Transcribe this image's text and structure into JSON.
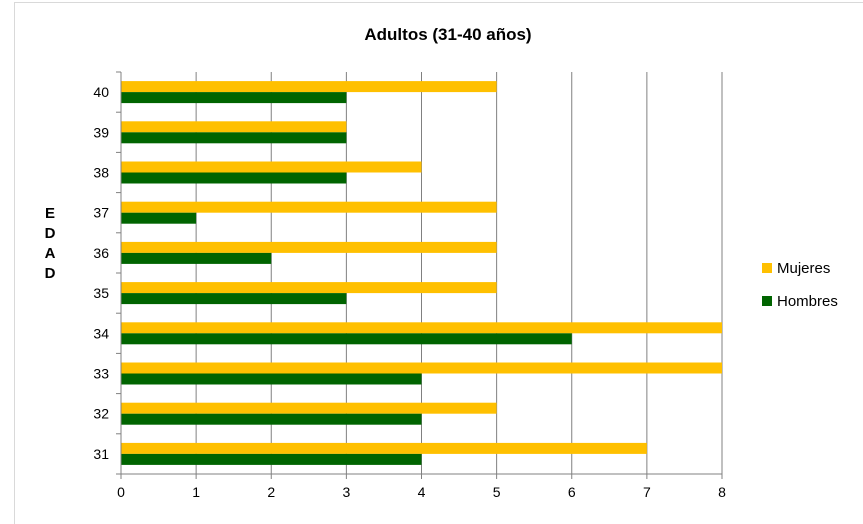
{
  "chart_data": {
    "type": "bar",
    "orientation": "horizontal",
    "title": "Adultos (31-40 años)",
    "ylabel": [
      "E",
      "D",
      "A",
      "D"
    ],
    "xlabel": "",
    "categories": [
      "31",
      "32",
      "33",
      "34",
      "35",
      "36",
      "37",
      "38",
      "39",
      "40"
    ],
    "series": [
      {
        "name": "Mujeres",
        "color": "#FFC000",
        "values": [
          7,
          5,
          8,
          8,
          5,
          5,
          5,
          4,
          3,
          5
        ]
      },
      {
        "name": "Hombres",
        "color": "#006400",
        "values": [
          4,
          4,
          4,
          6,
          3,
          2,
          1,
          3,
          3,
          3
        ]
      }
    ],
    "xlim": [
      0,
      8
    ],
    "xticks": [
      "0",
      "1",
      "2",
      "3",
      "4",
      "5",
      "6",
      "7",
      "8"
    ],
    "grid": "vertical",
    "legend": "right"
  }
}
